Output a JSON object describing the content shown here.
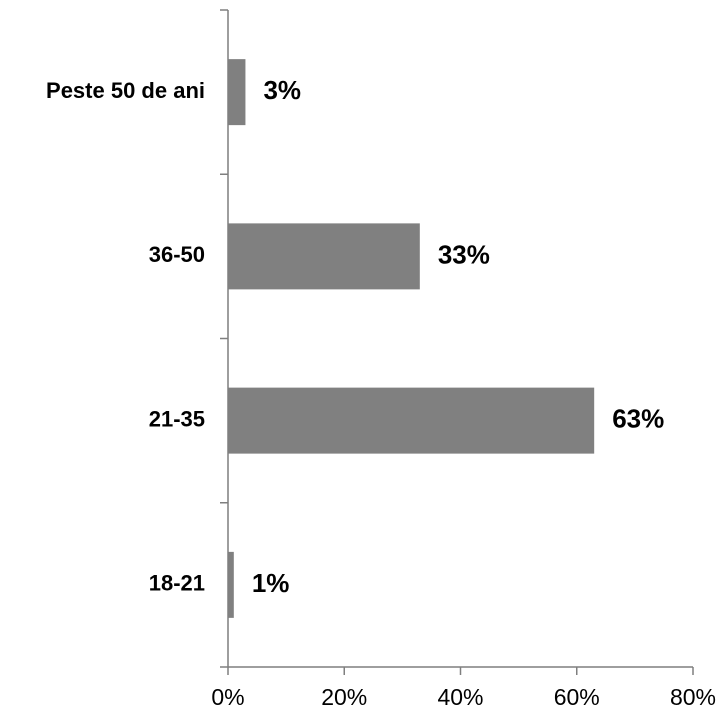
{
  "chart_data": {
    "type": "bar",
    "orientation": "horizontal",
    "categories": [
      "Peste 50 de ani",
      "36-50",
      "21-35",
      "18-21"
    ],
    "values": [
      3,
      33,
      63,
      1
    ],
    "data_labels": [
      "3%",
      "33%",
      "63%",
      "1%"
    ],
    "x_ticks": [
      "0%",
      "20%",
      "40%",
      "60%",
      "80%"
    ],
    "xlim": [
      0,
      80
    ],
    "title": "",
    "xlabel": "",
    "ylabel": "",
    "grid": false,
    "legend": "none",
    "bar_color": "#808080",
    "axis_color": "#7f7f7f"
  }
}
